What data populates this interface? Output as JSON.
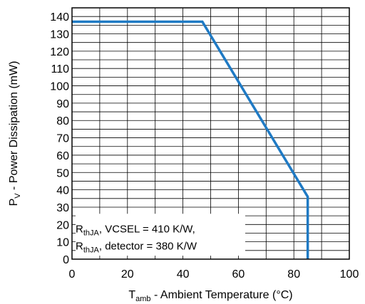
{
  "chart_data": {
    "type": "line",
    "x_axis": {
      "title_main": "T",
      "title_sub": "amb",
      "title_rest": " - Ambient Temperature (°C)",
      "range": [
        0,
        100
      ],
      "ticks": [
        0,
        20,
        40,
        60,
        80,
        100
      ],
      "grid_step": 10
    },
    "y_axis": {
      "title_main": "P",
      "title_sub": "V",
      "title_rest": " - Power Dissipation (mW)",
      "range": [
        0,
        145
      ],
      "ticks": [
        0,
        10,
        20,
        30,
        40,
        50,
        60,
        70,
        80,
        90,
        100,
        110,
        120,
        130,
        140
      ],
      "grid_step": 5
    },
    "grid": true,
    "series": [
      {
        "color": "#1f7ac4",
        "x": [
          0,
          47,
          85,
          85
        ],
        "y": [
          137,
          137,
          36,
          0
        ]
      }
    ],
    "annotation": {
      "placement": "bottom-left",
      "line1": {
        "main": "R",
        "sub": "thJA",
        "rest": ", VCSEL = 410 K/W,"
      },
      "line2": {
        "main": "R",
        "sub": "thJA",
        "rest": ", detector = 380 K/W"
      }
    }
  }
}
